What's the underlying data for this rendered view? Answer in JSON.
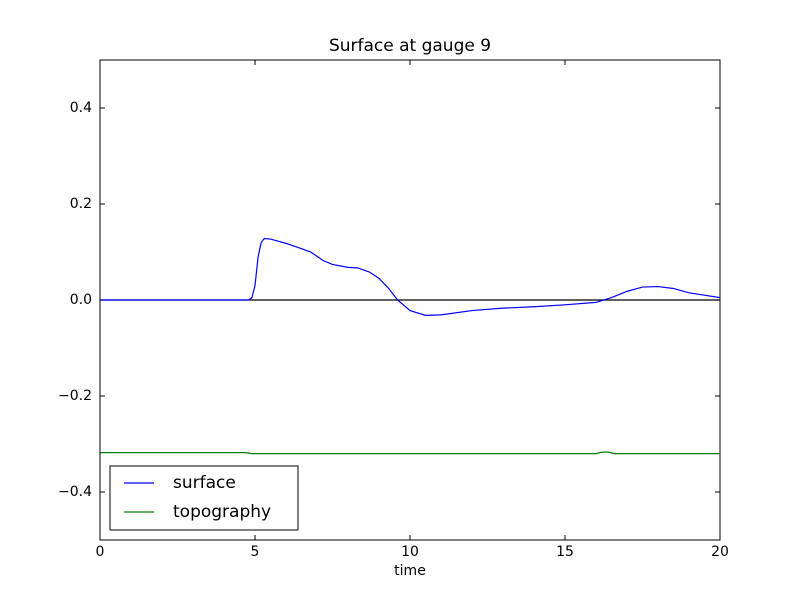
{
  "chart_data": {
    "type": "line",
    "title": "Surface at gauge 9",
    "xlabel": "time",
    "xlim": [
      0,
      20
    ],
    "ylim": [
      -0.5,
      0.5
    ],
    "xticks": [
      0,
      5,
      10,
      15,
      20
    ],
    "yticks": [
      {
        "value": -0.4,
        "label": "−0.4"
      },
      {
        "value": -0.2,
        "label": "−0.2"
      },
      {
        "value": 0,
        "label": "0.0"
      },
      0.2,
      0.4
    ],
    "axhline": 0,
    "legend": "lower left",
    "series": [
      {
        "name": "surface",
        "color": "#0000ff",
        "x": [
          0,
          4.8,
          4.9,
          5.0,
          5.1,
          5.2,
          5.3,
          5.5,
          6,
          6.5,
          6.8,
          7.2,
          7.5,
          8,
          8.3,
          8.7,
          9,
          9.3,
          9.6,
          10,
          10.5,
          11,
          12,
          13,
          14,
          15,
          16,
          16.5,
          17,
          17.5,
          18,
          18.5,
          19,
          19.5,
          20
        ],
        "values": [
          0,
          0,
          0.005,
          0.03,
          0.09,
          0.12,
          0.128,
          0.127,
          0.118,
          0.107,
          0.1,
          0.082,
          0.074,
          0.068,
          0.067,
          0.058,
          0.045,
          0.025,
          0,
          -0.022,
          -0.032,
          -0.031,
          -0.022,
          -0.017,
          -0.014,
          -0.01,
          -0.005,
          0.005,
          0.018,
          0.027,
          0.028,
          0.024,
          0.015,
          0.01,
          0.005
        ]
      },
      {
        "name": "topography",
        "color": "#008000",
        "x": [
          0,
          4.7,
          4.9,
          16,
          16.2,
          16.4,
          16.6,
          20
        ],
        "values": [
          -0.318,
          -0.318,
          -0.32,
          -0.32,
          -0.317,
          -0.317,
          -0.32,
          -0.32
        ]
      }
    ]
  }
}
